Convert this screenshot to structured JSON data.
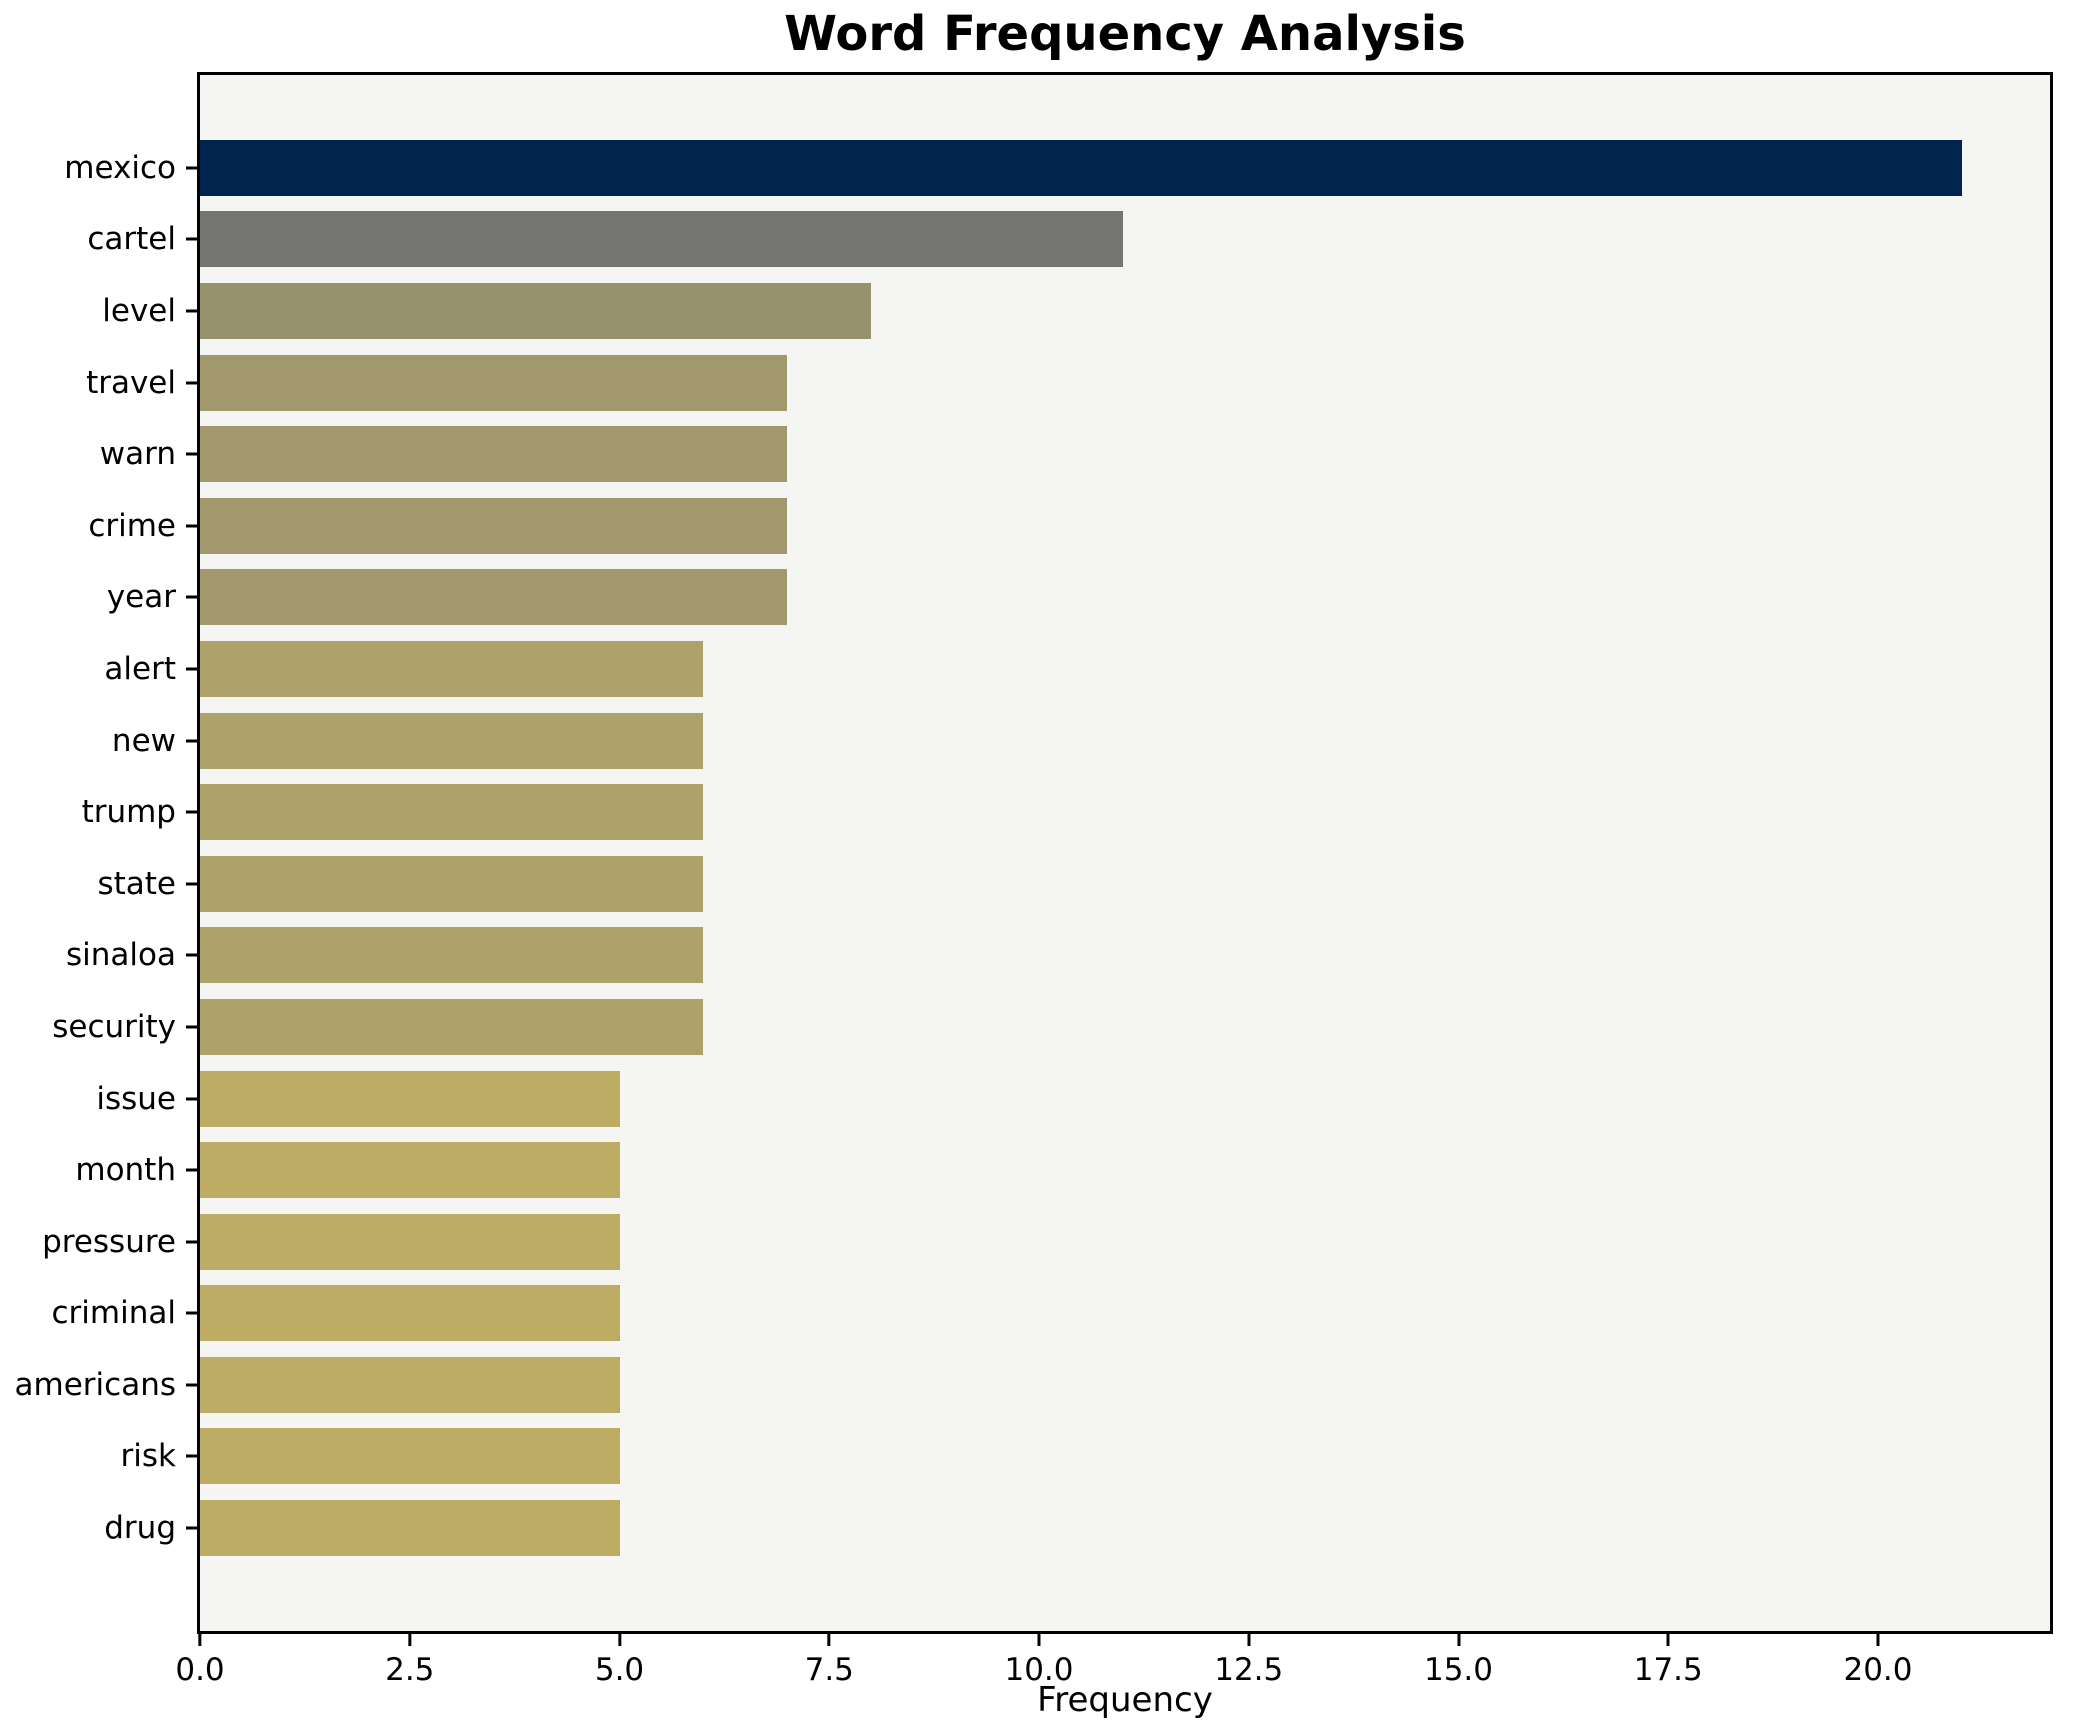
{
  "chart_data": {
    "type": "bar",
    "orientation": "horizontal",
    "title": "Word Frequency Analysis",
    "xlabel": "Frequency",
    "ylabel": "",
    "categories": [
      "mexico",
      "cartel",
      "level",
      "travel",
      "warn",
      "crime",
      "year",
      "alert",
      "new",
      "trump",
      "state",
      "sinaloa",
      "security",
      "issue",
      "month",
      "pressure",
      "criminal",
      "americans",
      "risk",
      "drug"
    ],
    "values": [
      21,
      11,
      8,
      7,
      7,
      7,
      7,
      6,
      6,
      6,
      6,
      6,
      6,
      5,
      5,
      5,
      5,
      5,
      5,
      5
    ],
    "bar_colors": [
      "#01244e",
      "#747571",
      "#98916d",
      "#a1986e",
      "#a1986e",
      "#a1986e",
      "#a1986e",
      "#aca26a",
      "#aca26a",
      "#aca26a",
      "#aca26a",
      "#aca26a",
      "#aca26a",
      "#bdac64",
      "#bdac64",
      "#bdac64",
      "#bdac64",
      "#bdac64",
      "#bdac64",
      "#bdac64"
    ],
    "xlim": [
      0,
      22.05
    ],
    "x_ticks": [
      0.0,
      2.5,
      5.0,
      7.5,
      10.0,
      12.5,
      15.0,
      17.5,
      20.0
    ],
    "x_tick_labels": [
      "0.0",
      "2.5",
      "5.0",
      "7.5",
      "10.0",
      "12.5",
      "15.0",
      "17.5",
      "20.0"
    ],
    "grid": false,
    "legend": null,
    "plot_background": "#f5f5f3",
    "figure_background": "#ffffff",
    "spine_color": "#000000"
  }
}
